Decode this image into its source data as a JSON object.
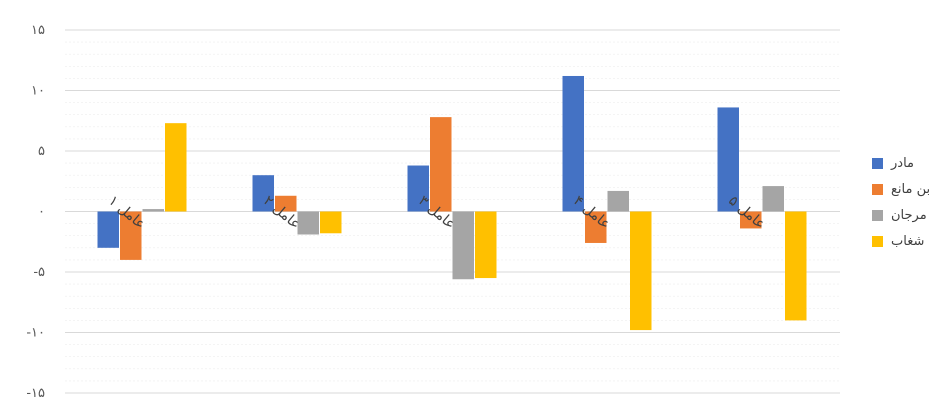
{
  "chart_data": {
    "type": "bar",
    "categories": [
      "عامل ۱",
      "عامل ۲",
      "عامل ۳",
      "عامل ۴",
      "عامل ۵"
    ],
    "series": [
      {
        "name": "مادر",
        "color": "#4472C4",
        "values": [
          -3,
          3,
          3.8,
          11.2,
          8.6
        ]
      },
      {
        "name": "بن مانع",
        "color": "#ED7D31",
        "values": [
          -4,
          1.3,
          7.8,
          -2.6,
          -1.4
        ]
      },
      {
        "name": "مرجان",
        "color": "#A5A5A5",
        "values": [
          0.2,
          -1.9,
          -5.6,
          1.7,
          2.1
        ]
      },
      {
        "name": "شغاب",
        "color": "#FFC000",
        "values": [
          7.3,
          -1.8,
          -5.5,
          -9.8,
          -9
        ]
      }
    ],
    "yticks": [
      "۱۵",
      "۱۰",
      "۵",
      "۰",
      "-۵",
      "-۱۰",
      "-۱۵"
    ],
    "ylim": [
      -15,
      15
    ],
    "grid": true,
    "legend_position": "right"
  }
}
